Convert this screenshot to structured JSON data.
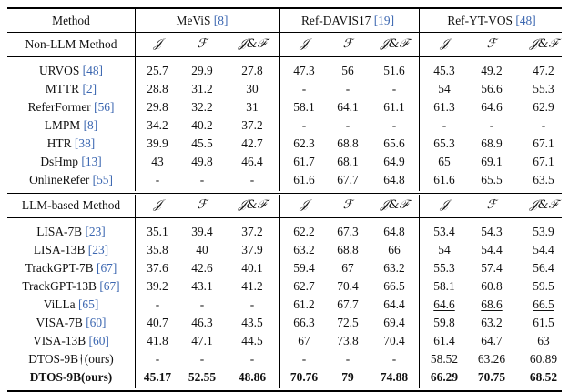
{
  "header": {
    "method_label": "Method",
    "groups": [
      {
        "name": "MeViS",
        "cite": "8"
      },
      {
        "name": "Ref-DAVIS17",
        "cite": "19"
      },
      {
        "name": "Ref-YT-VOS",
        "cite": "48"
      }
    ]
  },
  "metric_labels": [
    "𝒥",
    "ℱ",
    "𝒥&ℱ"
  ],
  "sections": [
    {
      "title": "Non-LLM Method",
      "rows": [
        {
          "name": "URVOS",
          "cite": "48",
          "values": [
            "25.7",
            "29.9",
            "27.8",
            "47.3",
            "56",
            "51.6",
            "45.3",
            "49.2",
            "47.2"
          ]
        },
        {
          "name": "MTTR",
          "cite": "2",
          "values": [
            "28.8",
            "31.2",
            "30",
            "-",
            "-",
            "-",
            "54",
            "56.6",
            "55.3"
          ]
        },
        {
          "name": "ReferFormer",
          "cite": "56",
          "values": [
            "29.8",
            "32.2",
            "31",
            "58.1",
            "64.1",
            "61.1",
            "61.3",
            "64.6",
            "62.9"
          ]
        },
        {
          "name": "LMPM",
          "cite": "8",
          "values": [
            "34.2",
            "40.2",
            "37.2",
            "-",
            "-",
            "-",
            "-",
            "-",
            "-"
          ]
        },
        {
          "name": "HTR",
          "cite": "38",
          "values": [
            "39.9",
            "45.5",
            "42.7",
            "62.3",
            "68.8",
            "65.6",
            "65.3",
            "68.9",
            "67.1"
          ]
        },
        {
          "name": "DsHmp",
          "cite": "13",
          "values": [
            "43",
            "49.8",
            "46.4",
            "61.7",
            "68.1",
            "64.9",
            "65",
            "69.1",
            "67.1"
          ]
        },
        {
          "name": "OnlineRefer",
          "cite": "55",
          "values": [
            "-",
            "-",
            "-",
            "61.6",
            "67.7",
            "64.8",
            "61.6",
            "65.5",
            "63.5"
          ]
        }
      ]
    },
    {
      "title": "LLM-based Method",
      "rows": [
        {
          "name": "LISA-7B",
          "cite": "23",
          "values": [
            "35.1",
            "39.4",
            "37.2",
            "62.2",
            "67.3",
            "64.8",
            "53.4",
            "54.3",
            "53.9"
          ]
        },
        {
          "name": "LISA-13B",
          "cite": "23",
          "values": [
            "35.8",
            "40",
            "37.9",
            "63.2",
            "68.8",
            "66",
            "54",
            "54.4",
            "54.4"
          ]
        },
        {
          "name": "TrackGPT-7B",
          "cite": "67",
          "values": [
            "37.6",
            "42.6",
            "40.1",
            "59.4",
            "67",
            "63.2",
            "55.3",
            "57.4",
            "56.4"
          ]
        },
        {
          "name": "TrackGPT-13B",
          "cite": "67",
          "values": [
            "39.2",
            "43.1",
            "41.2",
            "62.7",
            "70.4",
            "66.5",
            "58.1",
            "60.8",
            "59.5"
          ]
        },
        {
          "name": "ViLLa",
          "cite": "65",
          "values": [
            "-",
            "-",
            "-",
            "61.2",
            "67.7",
            "64.4",
            "64.6",
            "68.6",
            "66.5"
          ],
          "underline": [
            6,
            7,
            8
          ]
        },
        {
          "name": "VISA-7B",
          "cite": "60",
          "values": [
            "40.7",
            "46.3",
            "43.5",
            "66.3",
            "72.5",
            "69.4",
            "59.8",
            "63.2",
            "61.5"
          ]
        },
        {
          "name": "VISA-13B",
          "cite": "60",
          "values": [
            "41.8",
            "47.1",
            "44.5",
            "67",
            "73.8",
            "70.4",
            "61.4",
            "64.7",
            "63"
          ],
          "underline": [
            0,
            1,
            2,
            3,
            4,
            5
          ]
        },
        {
          "name": "DTOS-9B†(ours)",
          "cite": "",
          "values": [
            "-",
            "-",
            "-",
            "-",
            "-",
            "-",
            "58.52",
            "63.26",
            "60.89"
          ]
        },
        {
          "name": "DTOS-9B(ours)",
          "cite": "",
          "values": [
            "45.17",
            "52.55",
            "48.86",
            "70.76",
            "79",
            "74.88",
            "66.29",
            "70.75",
            "68.52"
          ],
          "bold": true
        }
      ]
    }
  ]
}
